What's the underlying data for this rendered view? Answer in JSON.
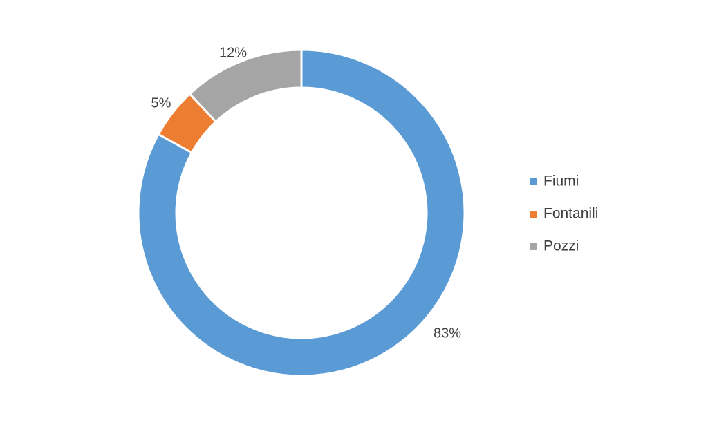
{
  "chart_data": {
    "type": "pie",
    "variant": "doughnut",
    "categories": [
      "Fiumi",
      "Fontanili",
      "Pozzi"
    ],
    "values": [
      83,
      5,
      12
    ],
    "data_labels": [
      "83%",
      "5%",
      "12%"
    ],
    "colors": [
      "#5B9BD5",
      "#ED7D31",
      "#A5A5A5"
    ],
    "legend": {
      "position": "right",
      "entries": [
        "Fiumi",
        "Fontanili",
        "Pozzi"
      ]
    }
  }
}
